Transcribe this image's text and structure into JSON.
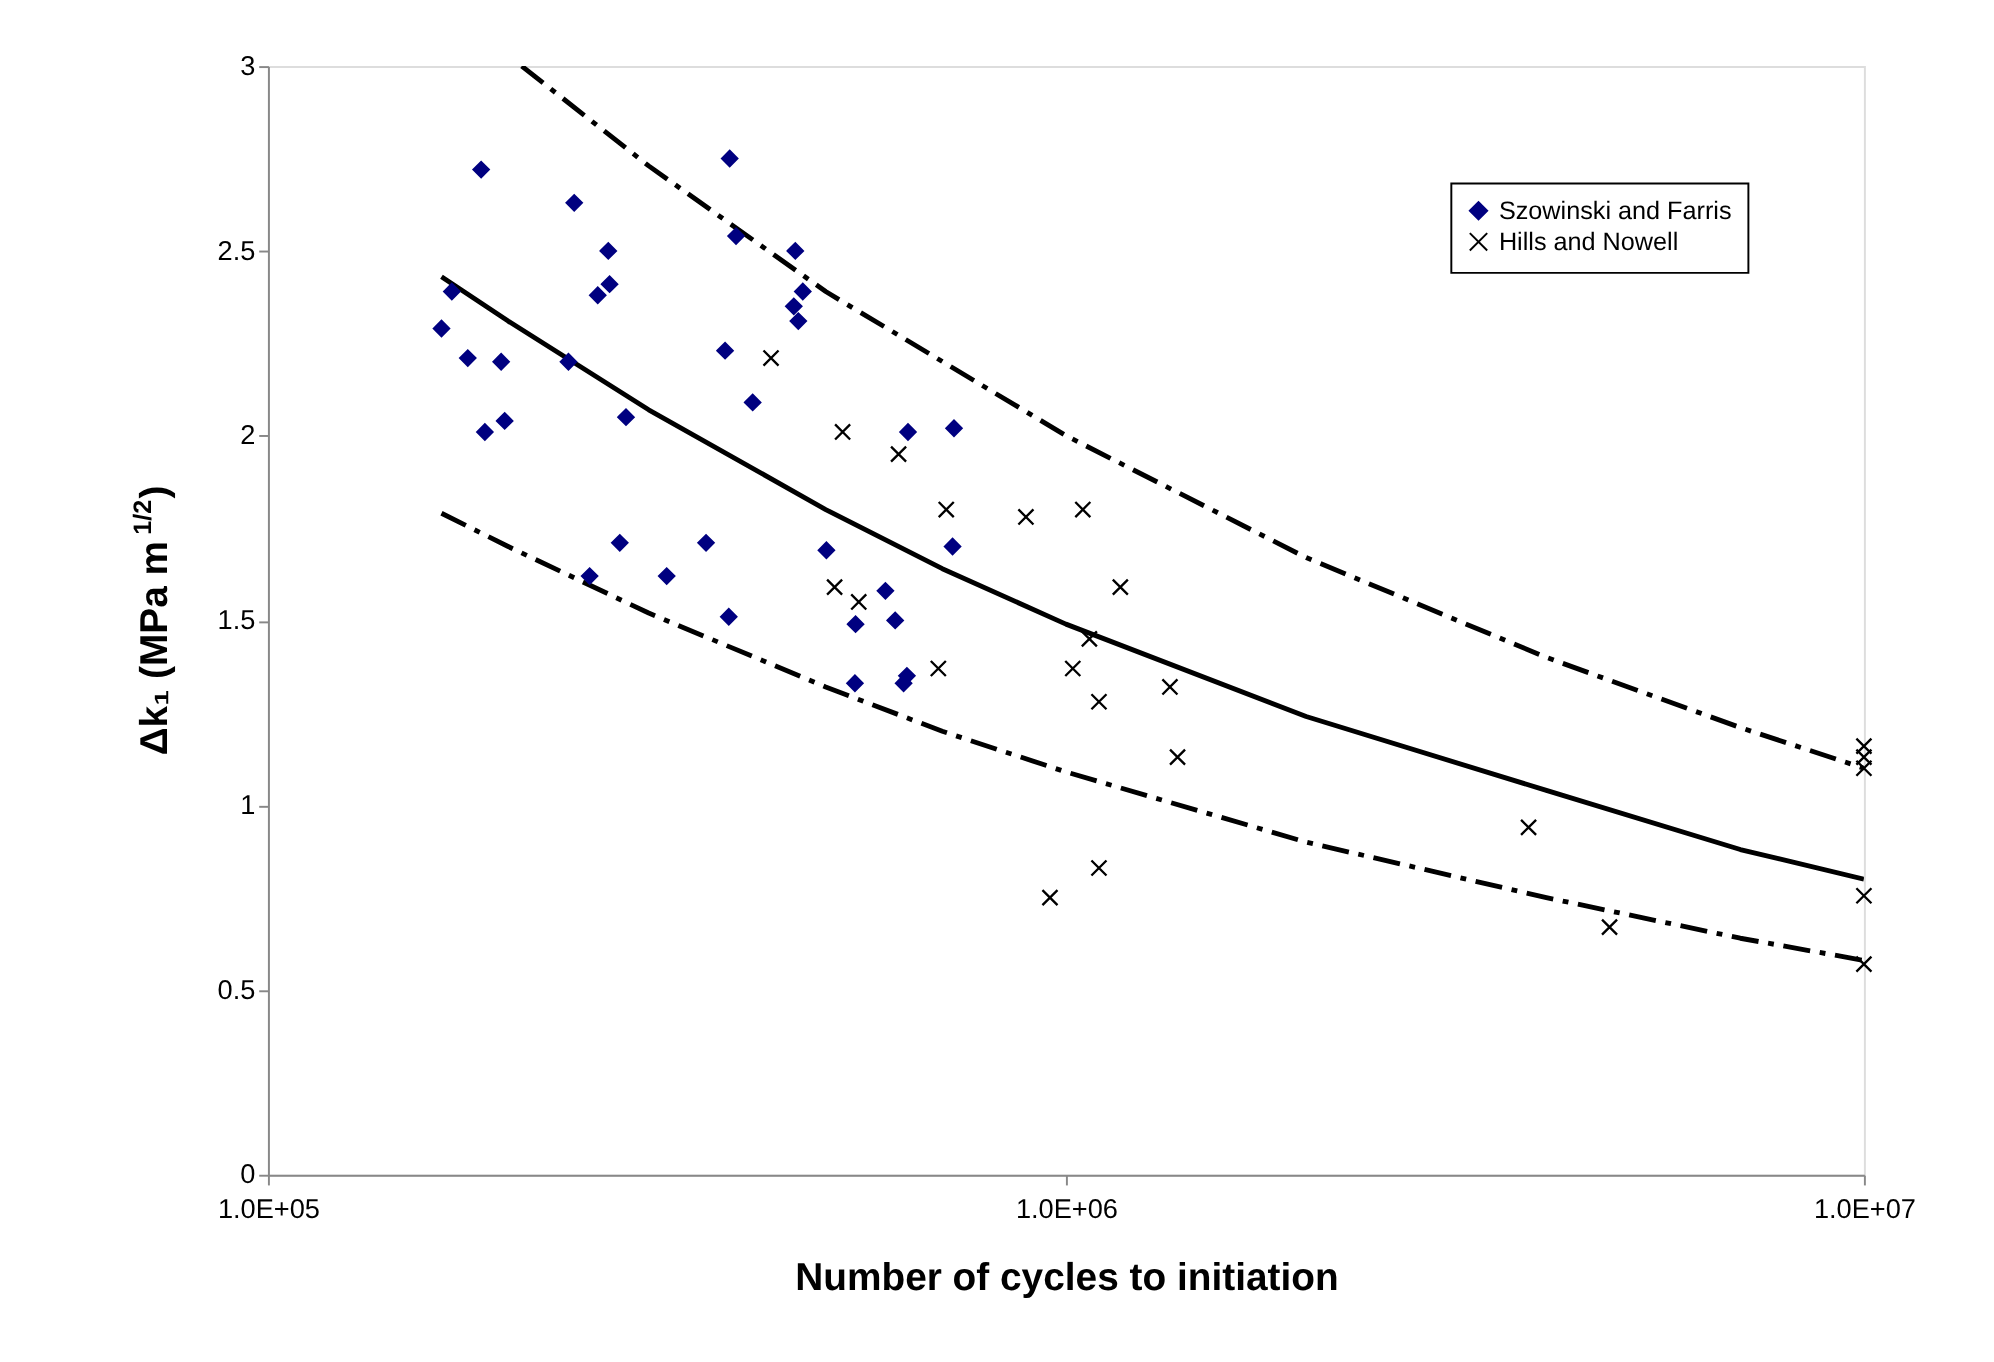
{
  "chart_data": {
    "type": "scatter",
    "xlabel": "Number of cycles to initiation",
    "ylabel": "Δk₁  (MPa m$^{1/2}$)",
    "log": "x",
    "xlim": [
      100000,
      10000000
    ],
    "xticks": [
      {
        "value": 100000,
        "label": "1.0E+05"
      },
      {
        "value": 1000000,
        "label": "1.0E+06"
      },
      {
        "value": 10000000,
        "label": "1.0E+07"
      }
    ],
    "ylim": [
      0,
      3
    ],
    "yticks": [
      0,
      0.5,
      1,
      1.5,
      2,
      2.5,
      3
    ],
    "grid": false,
    "legend": "top right",
    "series": [
      {
        "name": "Szowinski and Farris",
        "marker": "diamond",
        "color": "#000080",
        "x": [
          185000,
          242000,
          379000,
          386000,
          267000,
          458000,
          268000,
          259000,
          468000,
          456000,
          462000,
          170000,
          165000,
          178000,
          196000,
          238000,
          374000,
          405000,
          281000,
          198000,
          187000,
          634000,
          276000,
          354000,
          501000,
          253000,
          316000,
          594000,
          378000,
          545000,
          611000,
          544000,
          626000,
          632000,
          724000,
          721000
        ],
        "values": [
          2.72,
          2.63,
          2.75,
          2.54,
          2.5,
          2.5,
          2.41,
          2.38,
          2.39,
          2.35,
          2.31,
          2.39,
          2.29,
          2.21,
          2.2,
          2.2,
          2.23,
          2.09,
          2.05,
          2.04,
          2.01,
          2.01,
          1.71,
          1.71,
          1.69,
          1.62,
          1.62,
          1.58,
          1.51,
          1.49,
          1.5,
          1.33,
          1.33,
          1.35,
          2.02,
          1.7
        ]
      },
      {
        "name": "Hills and Nowell",
        "marker": "cross",
        "color": "#000000",
        "x": [
          427000,
          525000,
          617000,
          708000,
          891000,
          1050000,
          1170000,
          513000,
          550000,
          692000,
          1020000,
          1070000,
          1100000,
          1350000,
          1380000,
          1100000,
          955000,
          3800000,
          4800000,
          10000000,
          10000000,
          10000000,
          10000000,
          10000000
        ],
        "values": [
          2.21,
          2.01,
          1.95,
          1.8,
          1.78,
          1.8,
          1.59,
          1.59,
          1.55,
          1.37,
          1.37,
          1.45,
          1.28,
          1.32,
          1.13,
          0.83,
          0.75,
          0.94,
          0.67,
          0.755,
          0.57,
          1.16,
          1.13,
          1.1
        ]
      },
      {
        "type": "line",
        "line_style": "solid",
        "color": "#000000",
        "x": [
          165000,
          200000,
          300000,
          500000,
          700000,
          1000000,
          2000000,
          4000000,
          7000000,
          10000000
        ],
        "values": [
          2.43,
          2.31,
          2.07,
          1.8,
          1.64,
          1.49,
          1.24,
          1.04,
          0.88,
          0.8
        ]
      },
      {
        "type": "line",
        "line_style": "dashed",
        "color": "#000000",
        "x": [
          208000,
          300000,
          500000,
          1000000,
          2000000,
          4000000,
          7000000,
          10000000
        ],
        "values": [
          3.0,
          2.73,
          2.39,
          2.0,
          1.67,
          1.4,
          1.21,
          1.1
        ]
      },
      {
        "type": "line",
        "line_style": "dashed",
        "color": "#000000",
        "x": [
          165000,
          200000,
          300000,
          500000,
          700000,
          1000000,
          2000000,
          4000000,
          7000000,
          10000000
        ],
        "values": [
          1.79,
          1.7,
          1.52,
          1.32,
          1.2,
          1.09,
          0.9,
          0.75,
          0.64,
          0.58
        ]
      }
    ]
  }
}
